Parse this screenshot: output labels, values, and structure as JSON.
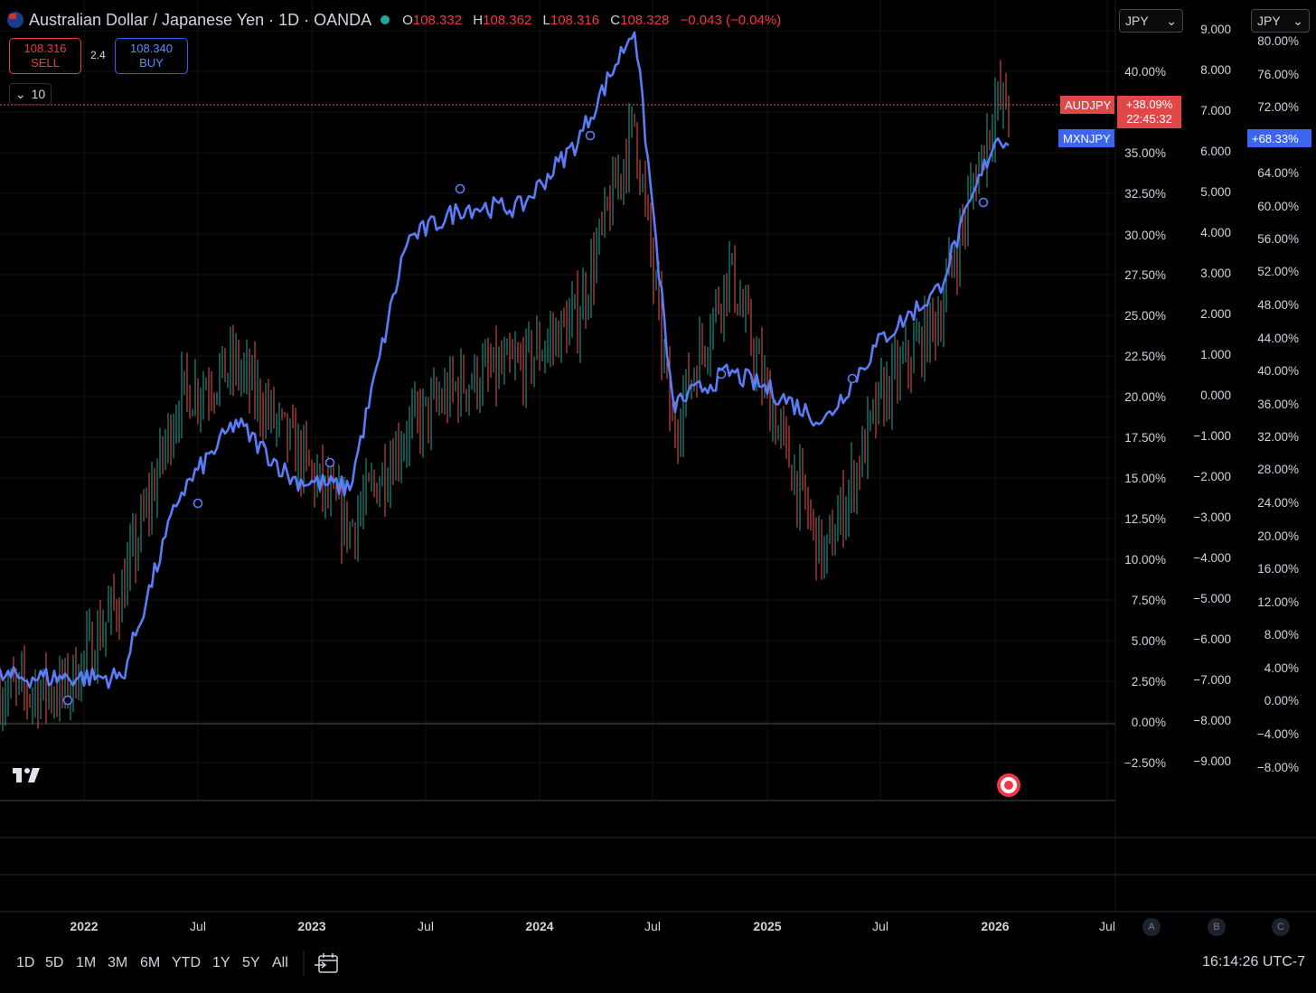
{
  "header": {
    "title": "Australian Dollar / Japanese Yen · 1D · OANDA",
    "ohlc": [
      {
        "key": "O",
        "value": "108.332"
      },
      {
        "key": "H",
        "value": "108.362"
      },
      {
        "key": "L",
        "value": "108.316"
      },
      {
        "key": "C",
        "value": "108.328"
      }
    ],
    "change": "−0.043 (−0.04%)"
  },
  "trade": {
    "sell_price": "108.316",
    "sell_label": "SELL",
    "spread": "2.4",
    "buy_price": "108.340",
    "buy_label": "BUY",
    "collapse_count": "10"
  },
  "currency_selectors": [
    "JPY",
    "JPY"
  ],
  "axes": {
    "percent_left": [
      "40.00%",
      "35.00%",
      "32.50%",
      "30.00%",
      "27.50%",
      "25.00%",
      "22.50%",
      "20.00%",
      "17.50%",
      "15.00%",
      "12.50%",
      "10.00%",
      "7.50%",
      "5.00%",
      "2.50%",
      "0.00%",
      "−2.50%"
    ],
    "value_mid": [
      "9.000",
      "8.000",
      "7.000",
      "6.000",
      "5.000",
      "4.000",
      "3.000",
      "2.000",
      "1.000",
      "0.000",
      "−1.000",
      "−2.000",
      "−3.000",
      "−4.000",
      "−5.000",
      "−6.000",
      "−7.000",
      "−8.000",
      "−9.000"
    ],
    "percent_right": [
      "80.00%",
      "76.00%",
      "72.00%",
      "64.00%",
      "60.00%",
      "56.00%",
      "52.00%",
      "48.00%",
      "44.00%",
      "40.00%",
      "36.00%",
      "32.00%",
      "28.00%",
      "24.00%",
      "20.00%",
      "16.00%",
      "12.00%",
      "8.00%",
      "4.00%",
      "0.00%",
      "−4.00%",
      "−8.00%"
    ],
    "time": [
      {
        "label": "2022",
        "year": true
      },
      {
        "label": "Jul",
        "year": false
      },
      {
        "label": "2023",
        "year": true
      },
      {
        "label": "Jul",
        "year": false
      },
      {
        "label": "2024",
        "year": true
      },
      {
        "label": "Jul",
        "year": false
      },
      {
        "label": "2025",
        "year": true
      },
      {
        "label": "Jul",
        "year": false
      },
      {
        "label": "2026",
        "year": true
      },
      {
        "label": "Jul",
        "year": false
      }
    ]
  },
  "tags": {
    "audjpy_name": "AUDJPY",
    "audjpy_change": "+38.09%",
    "audjpy_countdown": "22:45:32",
    "mxnjpy_name": "MXNJPY",
    "mxnjpy_change": "+68.33%"
  },
  "scale_buttons": [
    "A",
    "B",
    "C"
  ],
  "timeframes": [
    "1D",
    "5D",
    "1M",
    "3M",
    "6M",
    "YTD",
    "1Y",
    "5Y",
    "All"
  ],
  "clock": "16:14:26 UTC-7",
  "colors": {
    "up": "#26a69a",
    "down": "#ef5350",
    "compare": "#5b7cf7",
    "bg": "#000000"
  },
  "chart_data": {
    "type": "line",
    "x": [
      "2021-12",
      "2022-03",
      "2022-06",
      "2022-09",
      "2022-12",
      "2023-03",
      "2023-06",
      "2023-09",
      "2023-12",
      "2024-03",
      "2024-06",
      "2024-08",
      "2024-11",
      "2025-01",
      "2025-04",
      "2025-07",
      "2025-10",
      "2026-01"
    ],
    "series": [
      {
        "name": "AUDJPY",
        "axis": "percent",
        "values": [
          2,
          8,
          20,
          22,
          17,
          12,
          18,
          21,
          22,
          25,
          37,
          18,
          28,
          20,
          10,
          20,
          25,
          38.09
        ]
      },
      {
        "name": "MXNJPY",
        "axis": "percent",
        "values": [
          3,
          3,
          25,
          34,
          27,
          26,
          56,
          60,
          60,
          68,
          82,
          36,
          40,
          38,
          34,
          44,
          50,
          68.33
        ]
      }
    ],
    "ylim_percent": [
      -2.5,
      40
    ]
  }
}
